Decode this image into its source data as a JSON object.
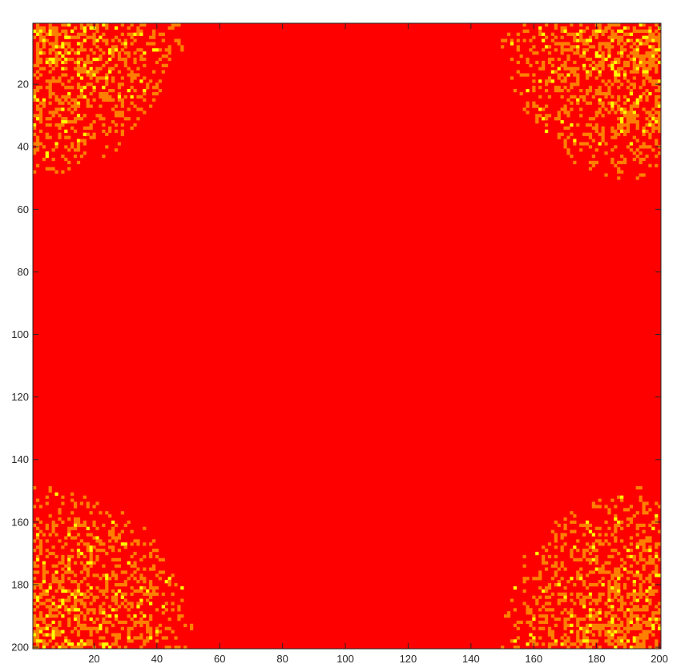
{
  "chart_data": {
    "type": "heatmap",
    "title": "",
    "xlabel": "",
    "ylabel": "",
    "rows": 200,
    "cols": 200,
    "xlim": [
      0.5,
      200.5
    ],
    "ylim": [
      0.5,
      200.5
    ],
    "y_direction": "reverse",
    "x_ticks": [
      20,
      40,
      60,
      80,
      100,
      120,
      140,
      160,
      180,
      200
    ],
    "x_tick_labels": [
      "20",
      "40",
      "60",
      "80",
      "100",
      "120",
      "140",
      "160",
      "180",
      "200"
    ],
    "y_ticks": [
      20,
      40,
      60,
      80,
      100,
      120,
      140,
      160,
      180,
      200
    ],
    "y_tick_labels": [
      "20",
      "40",
      "60",
      "80",
      "100",
      "120",
      "140",
      "160",
      "180",
      "200"
    ],
    "colormap": [
      "#ff0000",
      "#ff8000",
      "#ffff00"
    ],
    "background_value": 0,
    "grid": false,
    "regions": [
      {
        "label": "top-left",
        "center": [
          1,
          1
        ],
        "radius": 48
      },
      {
        "label": "top-right",
        "center": [
          200,
          1
        ],
        "radius": 52
      },
      {
        "label": "bottom-left",
        "center": [
          1,
          200
        ],
        "radius": 52
      },
      {
        "label": "bottom-right",
        "center": [
          200,
          200
        ],
        "radius": 52
      }
    ],
    "axis_color": "#262626"
  }
}
